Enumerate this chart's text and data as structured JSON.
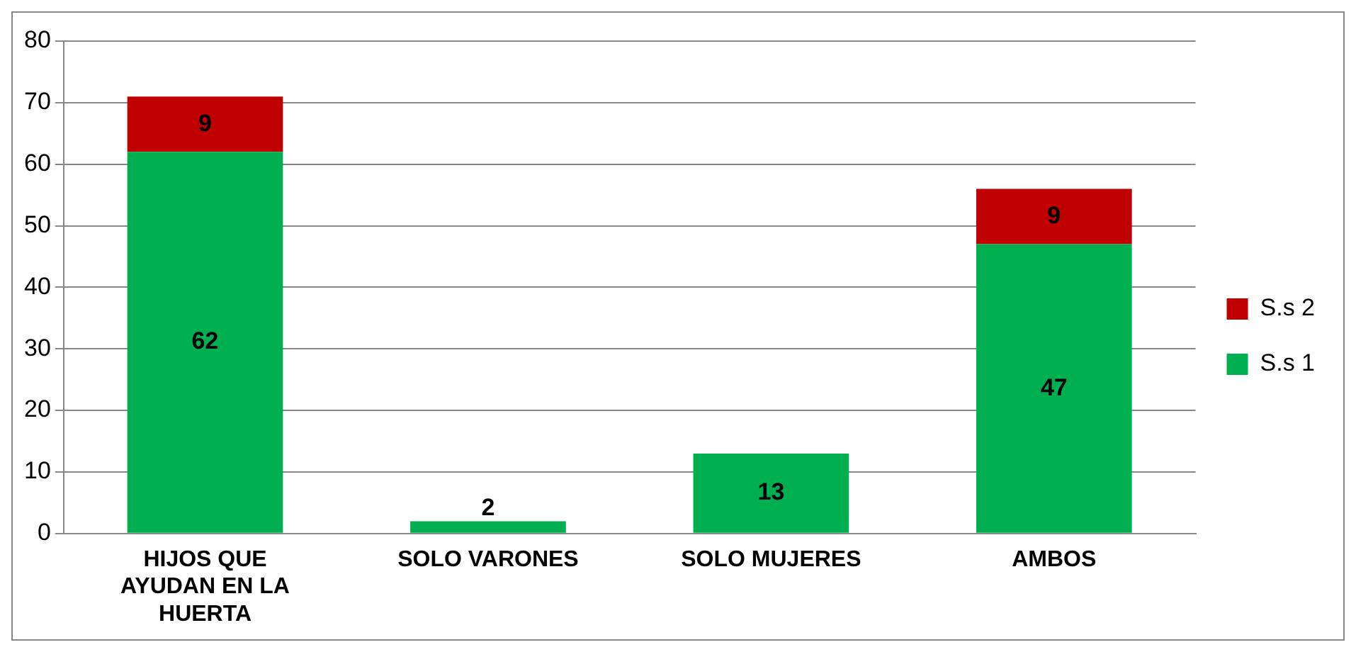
{
  "chart_data": {
    "type": "bar",
    "stacked": true,
    "categories": [
      "HIJOS QUE AYUDAN EN LA HUERTA",
      "SOLO VARONES",
      "SOLO MUJERES",
      "AMBOS"
    ],
    "series": [
      {
        "name": "S.s 1",
        "color": "#00b050",
        "values": [
          62,
          2,
          13,
          47
        ]
      },
      {
        "name": "S.s 2",
        "color": "#c00000",
        "values": [
          9,
          null,
          null,
          9
        ]
      }
    ],
    "ylim": [
      0,
      80
    ],
    "yticks": [
      0,
      10,
      20,
      30,
      40,
      50,
      60,
      70,
      80
    ],
    "grid": "y",
    "legend": "right",
    "data_labels": true
  }
}
